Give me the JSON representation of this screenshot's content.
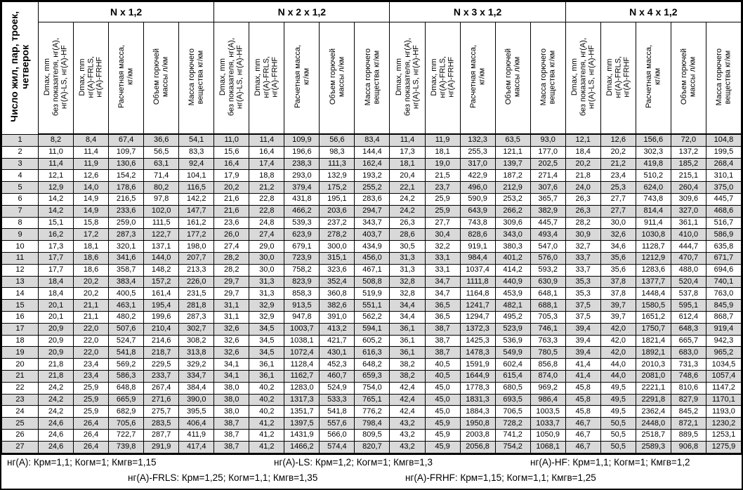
{
  "table": {
    "col0_header": "Число жил, пар, троек,\nчетверок",
    "group_headers": [
      "N x 1,2",
      "N x 2 x 1,2",
      "N x 3 x 1,2",
      "N x 4 x 1,2"
    ],
    "sub_headers": [
      "Dmax, mm\nбез показателя, нг(А),\nнг(А)-LS, нг(А)-HF",
      "Dmax, mm\nнг(А)-FRLS,\nнг(А)-FRHF",
      "Расчетная масса,\nкг/км",
      "Объем горючей\nмассы л/км",
      "Масса горючего\nвещества кг/км"
    ],
    "rows": [
      [
        "1",
        "8,2",
        "8,4",
        "67,4",
        "36,6",
        "54,1",
        "11,0",
        "11,4",
        "109,9",
        "56,6",
        "83,4",
        "11,4",
        "11,9",
        "132,3",
        "63,5",
        "93,0",
        "12,1",
        "12,6",
        "156,6",
        "72,0",
        "104,8"
      ],
      [
        "2",
        "11,0",
        "11,4",
        "109,7",
        "56,5",
        "83,3",
        "15,6",
        "16,4",
        "196,6",
        "98,3",
        "144,4",
        "17,3",
        "18,1",
        "255,3",
        "121,1",
        "177,0",
        "18,4",
        "20,2",
        "302,3",
        "137,2",
        "199,5"
      ],
      [
        "3",
        "11,4",
        "11,9",
        "130,6",
        "63,1",
        "92,4",
        "16,4",
        "17,4",
        "238,3",
        "111,3",
        "162,4",
        "18,1",
        "19,0",
        "317,0",
        "139,7",
        "202,5",
        "20,2",
        "21,2",
        "419,8",
        "185,2",
        "268,4"
      ],
      [
        "4",
        "12,1",
        "12,6",
        "154,2",
        "71,4",
        "104,1",
        "17,9",
        "18,8",
        "293,0",
        "132,9",
        "193,2",
        "20,4",
        "21,5",
        "422,9",
        "187,2",
        "271,4",
        "21,8",
        "23,4",
        "510,2",
        "215,1",
        "310,1"
      ],
      [
        "5",
        "12,9",
        "14,0",
        "178,6",
        "80,2",
        "116,5",
        "20,2",
        "21,2",
        "379,4",
        "175,2",
        "255,2",
        "22,1",
        "23,7",
        "496,0",
        "212,9",
        "307,6",
        "24,0",
        "25,3",
        "624,0",
        "260,4",
        "375,0"
      ],
      [
        "6",
        "14,2",
        "14,9",
        "216,5",
        "97,8",
        "142,2",
        "21,6",
        "22,8",
        "431,8",
        "195,1",
        "283,6",
        "24,2",
        "25,9",
        "590,9",
        "253,2",
        "365,7",
        "26,3",
        "27,7",
        "743,8",
        "309,6",
        "445,7"
      ],
      [
        "7",
        "14,2",
        "14,9",
        "233,6",
        "102,0",
        "147,7",
        "21,6",
        "22,8",
        "466,2",
        "203,6",
        "294,7",
        "24,2",
        "25,9",
        "643,9",
        "266,2",
        "382,9",
        "26,3",
        "27,7",
        "814,4",
        "327,0",
        "468,6"
      ],
      [
        "8",
        "15,1",
        "15,8",
        "259,0",
        "111,5",
        "161,2",
        "23,6",
        "24,8",
        "539,3",
        "237,2",
        "343,7",
        "26,3",
        "27,7",
        "743,8",
        "309,6",
        "445,7",
        "28,2",
        "30,0",
        "911,4",
        "361,1",
        "516,7"
      ],
      [
        "9",
        "16,2",
        "17,2",
        "287,3",
        "122,7",
        "177,2",
        "26,0",
        "27,4",
        "623,9",
        "278,2",
        "403,7",
        "28,6",
        "30,4",
        "828,6",
        "343,0",
        "493,4",
        "30,9",
        "32,6",
        "1030,8",
        "410,0",
        "586,9"
      ],
      [
        "10",
        "17,3",
        "18,1",
        "320,1",
        "137,1",
        "198,0",
        "27,4",
        "29,0",
        "679,1",
        "300,0",
        "434,9",
        "30,5",
        "32,2",
        "919,1",
        "380,3",
        "547,0",
        "32,7",
        "34,6",
        "1128,7",
        "444,7",
        "635,8"
      ],
      [
        "11",
        "17,7",
        "18,6",
        "341,6",
        "144,0",
        "207,7",
        "28,2",
        "30,0",
        "723,9",
        "315,1",
        "456,0",
        "31,3",
        "33,1",
        "984,4",
        "401,2",
        "576,0",
        "33,7",
        "35,6",
        "1212,9",
        "470,7",
        "671,7"
      ],
      [
        "12",
        "17,7",
        "18,6",
        "358,7",
        "148,2",
        "213,3",
        "28,2",
        "30,0",
        "758,2",
        "323,6",
        "467,1",
        "31,3",
        "33,1",
        "1037,4",
        "414,2",
        "593,2",
        "33,7",
        "35,6",
        "1283,6",
        "488,0",
        "694,6"
      ],
      [
        "13",
        "18,4",
        "20,2",
        "383,4",
        "157,2",
        "226,0",
        "29,7",
        "31,3",
        "823,9",
        "352,4",
        "508,8",
        "32,8",
        "34,7",
        "1111,8",
        "440,9",
        "630,9",
        "35,3",
        "37,8",
        "1377,7",
        "520,4",
        "740,1"
      ],
      [
        "14",
        "18,4",
        "20,2",
        "400,5",
        "161,4",
        "231,5",
        "29,7",
        "31,3",
        "858,3",
        "360,8",
        "519,9",
        "32,8",
        "34,7",
        "1164,8",
        "453,9",
        "648,1",
        "35,3",
        "37,8",
        "1448,4",
        "537,8",
        "763,0"
      ],
      [
        "15",
        "20,1",
        "21,1",
        "463,1",
        "195,4",
        "281,8",
        "31,1",
        "32,9",
        "913,5",
        "382,6",
        "551,1",
        "34,4",
        "36,5",
        "1241,7",
        "482,1",
        "688,1",
        "37,5",
        "39,7",
        "1580,5",
        "595,1",
        "845,9"
      ],
      [
        "16",
        "20,1",
        "21,1",
        "480,2",
        "199,6",
        "287,3",
        "31,1",
        "32,9",
        "947,8",
        "391,0",
        "562,2",
        "34,4",
        "36,5",
        "1294,7",
        "495,2",
        "705,3",
        "37,5",
        "39,7",
        "1651,2",
        "612,4",
        "868,7"
      ],
      [
        "17",
        "20,9",
        "22,0",
        "507,6",
        "210,4",
        "302,7",
        "32,6",
        "34,5",
        "1003,7",
        "413,2",
        "594,1",
        "36,1",
        "38,7",
        "1372,3",
        "523,9",
        "746,1",
        "39,4",
        "42,0",
        "1750,7",
        "648,3",
        "919,4"
      ],
      [
        "18",
        "20,9",
        "22,0",
        "524,7",
        "214,6",
        "308,2",
        "32,6",
        "34,5",
        "1038,1",
        "421,7",
        "605,2",
        "36,1",
        "38,7",
        "1425,3",
        "536,9",
        "763,3",
        "39,4",
        "42,0",
        "1821,4",
        "665,7",
        "942,3"
      ],
      [
        "19",
        "20,9",
        "22,0",
        "541,8",
        "218,7",
        "313,8",
        "32,6",
        "34,5",
        "1072,4",
        "430,1",
        "616,3",
        "36,1",
        "38,7",
        "1478,3",
        "549,9",
        "780,5",
        "39,4",
        "42,0",
        "1892,1",
        "683,0",
        "965,2"
      ],
      [
        "20",
        "21,8",
        "23,4",
        "569,2",
        "229,5",
        "329,2",
        "34,1",
        "36,1",
        "1128,4",
        "452,3",
        "648,2",
        "38,2",
        "40,5",
        "1591,9",
        "602,4",
        "856,8",
        "41,4",
        "44,0",
        "2010,3",
        "731,3",
        "1034,5"
      ],
      [
        "21",
        "21,8",
        "23,4",
        "586,3",
        "233,7",
        "334,7",
        "34,1",
        "36,1",
        "1162,7",
        "460,7",
        "659,3",
        "38,2",
        "40,5",
        "1644,9",
        "615,4",
        "874,0",
        "41,4",
        "44,0",
        "2081,0",
        "748,6",
        "1057,4"
      ],
      [
        "22",
        "24,2",
        "25,9",
        "648,8",
        "267,4",
        "384,4",
        "38,0",
        "40,2",
        "1283,0",
        "524,9",
        "754,0",
        "42,4",
        "45,0",
        "1778,3",
        "680,5",
        "969,2",
        "45,8",
        "49,5",
        "2221,1",
        "810,6",
        "1147,2"
      ],
      [
        "23",
        "24,2",
        "25,9",
        "665,9",
        "271,6",
        "390,0",
        "38,0",
        "40,2",
        "1317,3",
        "533,3",
        "765,1",
        "42,4",
        "45,0",
        "1831,3",
        "693,5",
        "986,4",
        "45,8",
        "49,5",
        "2291,8",
        "827,9",
        "1170,1"
      ],
      [
        "24",
        "24,2",
        "25,9",
        "682,9",
        "275,7",
        "395,5",
        "38,0",
        "40,2",
        "1351,7",
        "541,8",
        "776,2",
        "42,4",
        "45,0",
        "1884,3",
        "706,5",
        "1003,5",
        "45,8",
        "49,5",
        "2362,4",
        "845,2",
        "1193,0"
      ],
      [
        "25",
        "24,6",
        "26,4",
        "705,6",
        "283,5",
        "406,4",
        "38,7",
        "41,2",
        "1397,5",
        "557,6",
        "798,4",
        "43,2",
        "45,9",
        "1950,8",
        "728,2",
        "1033,7",
        "46,7",
        "50,5",
        "2448,0",
        "872,1",
        "1230,2"
      ],
      [
        "26",
        "24,6",
        "26,4",
        "722,7",
        "287,7",
        "411,9",
        "38,7",
        "41,2",
        "1431,9",
        "566,0",
        "809,5",
        "43,2",
        "45,9",
        "2003,8",
        "741,2",
        "1050,9",
        "46,7",
        "50,5",
        "2518,7",
        "889,5",
        "1253,1"
      ],
      [
        "27",
        "24,6",
        "26,4",
        "739,8",
        "291,9",
        "417,4",
        "38,7",
        "41,2",
        "1466,2",
        "574,4",
        "820,7",
        "43,2",
        "45,9",
        "2056,8",
        "754,2",
        "1068,1",
        "46,7",
        "50,5",
        "2589,3",
        "906,8",
        "1275,9"
      ]
    ]
  },
  "footer": {
    "line1": [
      "нг(А): Крм=1,1;  Когм=1;  Кмгв=1,15",
      "нг(А)-LS: Крм=1,2;  Когм=1;  Кмгв=1,3",
      "нг(А)-HF: Крм=1,1;  Когм=1;  Кмгв=1,2"
    ],
    "line2": [
      "нг(А)-FRLS: Крм=1,25;  Когм=1,1;  Кмгв=1,35",
      "нг(А)-FRHF: Крм=1,15;  Когм=1,1;  Кмгв=1,25"
    ]
  }
}
